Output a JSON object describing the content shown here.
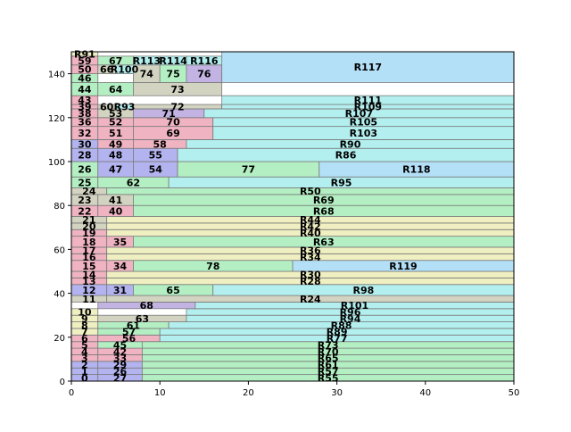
{
  "chart_data": {
    "type": "treemap",
    "xlim": [
      0,
      50
    ],
    "ylim": [
      0,
      150
    ],
    "xticks": [
      0,
      10,
      20,
      30,
      40,
      50
    ],
    "yticks": [
      0,
      20,
      40,
      60,
      80,
      100,
      120,
      140
    ],
    "grid": false,
    "palette": [
      "#b3b3ef",
      "#efb3c2",
      "#b3efc2",
      "#efefc2",
      "#b3efef",
      "#d3d3c2",
      "#c2b3e2",
      "#b3dff7"
    ],
    "rects": [
      {
        "label": "0",
        "x0": 0,
        "x1": 3,
        "y0": 0,
        "y1": 3,
        "c": 0
      },
      {
        "label": "27",
        "x0": 3,
        "x1": 8,
        "y0": 0,
        "y1": 3,
        "c": 0
      },
      {
        "label": "R55",
        "x0": 8,
        "x1": 50,
        "y0": 0,
        "y1": 3,
        "c": 2
      },
      {
        "label": "1",
        "x0": 0,
        "x1": 3,
        "y0": 3,
        "y1": 6,
        "c": 0
      },
      {
        "label": "26",
        "x0": 3,
        "x1": 8,
        "y0": 3,
        "y1": 6,
        "c": 0
      },
      {
        "label": "R57",
        "x0": 8,
        "x1": 50,
        "y0": 3,
        "y1": 6,
        "c": 2
      },
      {
        "label": "2",
        "x0": 0,
        "x1": 3,
        "y0": 6,
        "y1": 9,
        "c": 0
      },
      {
        "label": "29",
        "x0": 3,
        "x1": 8,
        "y0": 6,
        "y1": 9,
        "c": 0
      },
      {
        "label": "R61",
        "x0": 8,
        "x1": 50,
        "y0": 6,
        "y1": 9,
        "c": 2
      },
      {
        "label": "3",
        "x0": 0,
        "x1": 3,
        "y0": 9,
        "y1": 12,
        "c": 1
      },
      {
        "label": "33",
        "x0": 3,
        "x1": 8,
        "y0": 9,
        "y1": 12,
        "c": 1
      },
      {
        "label": "R65",
        "x0": 8,
        "x1": 50,
        "y0": 9,
        "y1": 12,
        "c": 2
      },
      {
        "label": "4",
        "x0": 0,
        "x1": 3,
        "y0": 12,
        "y1": 15,
        "c": 1
      },
      {
        "label": "42",
        "x0": 3,
        "x1": 8,
        "y0": 12,
        "y1": 15,
        "c": 1
      },
      {
        "label": "R70",
        "x0": 8,
        "x1": 50,
        "y0": 12,
        "y1": 15,
        "c": 2
      },
      {
        "label": "5",
        "x0": 0,
        "x1": 3,
        "y0": 15,
        "y1": 18,
        "c": 1
      },
      {
        "label": "45",
        "x0": 3,
        "x1": 8,
        "y0": 15,
        "y1": 18,
        "c": 2
      },
      {
        "label": "R73",
        "x0": 8,
        "x1": 50,
        "y0": 15,
        "y1": 18,
        "c": 2
      },
      {
        "label": "6",
        "x0": 0,
        "x1": 3,
        "y0": 18,
        "y1": 21,
        "c": 1
      },
      {
        "label": "56",
        "x0": 3,
        "x1": 10,
        "y0": 18,
        "y1": 21,
        "c": 1
      },
      {
        "label": "R77",
        "x0": 10,
        "x1": 50,
        "y0": 18,
        "y1": 21,
        "c": 4
      },
      {
        "label": "7",
        "x0": 0,
        "x1": 3,
        "y0": 21,
        "y1": 24,
        "c": 3
      },
      {
        "label": "57",
        "x0": 3,
        "x1": 10,
        "y0": 21,
        "y1": 24,
        "c": 2
      },
      {
        "label": "R89",
        "x0": 10,
        "x1": 50,
        "y0": 21,
        "y1": 24,
        "c": 4
      },
      {
        "label": "8",
        "x0": 0,
        "x1": 3,
        "y0": 24,
        "y1": 27,
        "c": 3
      },
      {
        "label": "61",
        "x0": 3,
        "x1": 11,
        "y0": 24,
        "y1": 27,
        "c": 2
      },
      {
        "label": "R88",
        "x0": 11,
        "x1": 50,
        "y0": 24,
        "y1": 27,
        "c": 4
      },
      {
        "label": "9",
        "x0": 0,
        "x1": 3,
        "y0": 27,
        "y1": 30,
        "c": 3
      },
      {
        "label": "63",
        "x0": 3,
        "x1": 13,
        "y0": 27,
        "y1": 30,
        "c": 5
      },
      {
        "label": "R94",
        "x0": 13,
        "x1": 50,
        "y0": 27,
        "y1": 30,
        "c": 4
      },
      {
        "label": "10",
        "x0": 0,
        "x1": 3,
        "y0": 30,
        "y1": 33,
        "c": 3
      },
      {
        "label": "R96",
        "x0": 13,
        "x1": 50,
        "y0": 30,
        "y1": 33,
        "c": 4
      },
      {
        "label": "68",
        "x0": 3,
        "x1": 14,
        "y0": 33,
        "y1": 36,
        "c": 6
      },
      {
        "label": "R101",
        "x0": 14,
        "x1": 50,
        "y0": 33,
        "y1": 36,
        "c": 4
      },
      {
        "label": "11",
        "x0": 0,
        "x1": 4,
        "y0": 36,
        "y1": 39,
        "c": 5
      },
      {
        "label": "R24",
        "x0": 4,
        "x1": 50,
        "y0": 36,
        "y1": 39,
        "c": 5
      },
      {
        "label": "12",
        "x0": 0,
        "x1": 4,
        "y0": 39,
        "y1": 44,
        "c": 0
      },
      {
        "label": "31",
        "x0": 4,
        "x1": 7,
        "y0": 39,
        "y1": 44,
        "c": 0
      },
      {
        "label": "65",
        "x0": 7,
        "x1": 16,
        "y0": 39,
        "y1": 44,
        "c": 2
      },
      {
        "label": "R98",
        "x0": 16,
        "x1": 50,
        "y0": 39,
        "y1": 44,
        "c": 4
      },
      {
        "label": "13",
        "x0": 0,
        "x1": 4,
        "y0": 44,
        "y1": 47,
        "c": 1
      },
      {
        "label": "R28",
        "x0": 4,
        "x1": 50,
        "y0": 44,
        "y1": 47,
        "c": 3
      },
      {
        "label": "14",
        "x0": 0,
        "x1": 4,
        "y0": 47,
        "y1": 50,
        "c": 1
      },
      {
        "label": "R30",
        "x0": 4,
        "x1": 50,
        "y0": 47,
        "y1": 50,
        "c": 3
      },
      {
        "label": "15",
        "x0": 0,
        "x1": 4,
        "y0": 50,
        "y1": 55,
        "c": 1
      },
      {
        "label": "34",
        "x0": 4,
        "x1": 7,
        "y0": 50,
        "y1": 55,
        "c": 1
      },
      {
        "label": "78",
        "x0": 7,
        "x1": 25,
        "y0": 50,
        "y1": 55,
        "c": 2
      },
      {
        "label": "R119",
        "x0": 25,
        "x1": 50,
        "y0": 50,
        "y1": 55,
        "c": 7
      },
      {
        "label": "16",
        "x0": 0,
        "x1": 4,
        "y0": 55,
        "y1": 58,
        "c": 1
      },
      {
        "label": "R34",
        "x0": 4,
        "x1": 50,
        "y0": 55,
        "y1": 58,
        "c": 3
      },
      {
        "label": "17",
        "x0": 0,
        "x1": 4,
        "y0": 58,
        "y1": 61,
        "c": 1
      },
      {
        "label": "R36",
        "x0": 4,
        "x1": 50,
        "y0": 58,
        "y1": 61,
        "c": 3
      },
      {
        "label": "18",
        "x0": 0,
        "x1": 4,
        "y0": 61,
        "y1": 66,
        "c": 1
      },
      {
        "label": "35",
        "x0": 4,
        "x1": 7,
        "y0": 61,
        "y1": 66,
        "c": 1
      },
      {
        "label": "R63",
        "x0": 7,
        "x1": 50,
        "y0": 61,
        "y1": 66,
        "c": 2
      },
      {
        "label": "19",
        "x0": 0,
        "x1": 4,
        "y0": 66,
        "y1": 69,
        "c": 1
      },
      {
        "label": "R40",
        "x0": 4,
        "x1": 50,
        "y0": 66,
        "y1": 69,
        "c": 3
      },
      {
        "label": "20",
        "x0": 0,
        "x1": 4,
        "y0": 69,
        "y1": 72,
        "c": 5
      },
      {
        "label": "R42",
        "x0": 4,
        "x1": 50,
        "y0": 69,
        "y1": 72,
        "c": 3
      },
      {
        "label": "21",
        "x0": 0,
        "x1": 4,
        "y0": 72,
        "y1": 75,
        "c": 5
      },
      {
        "label": "R44",
        "x0": 4,
        "x1": 50,
        "y0": 72,
        "y1": 75,
        "c": 3
      },
      {
        "label": "22",
        "x0": 0,
        "x1": 3,
        "y0": 75,
        "y1": 80,
        "c": 1
      },
      {
        "label": "40",
        "x0": 3,
        "x1": 7,
        "y0": 75,
        "y1": 80,
        "c": 1
      },
      {
        "label": "R68",
        "x0": 7,
        "x1": 50,
        "y0": 75,
        "y1": 80,
        "c": 2
      },
      {
        "label": "23",
        "x0": 0,
        "x1": 3,
        "y0": 80,
        "y1": 85,
        "c": 5
      },
      {
        "label": "41",
        "x0": 3,
        "x1": 7,
        "y0": 80,
        "y1": 85,
        "c": 5
      },
      {
        "label": "R69",
        "x0": 7,
        "x1": 50,
        "y0": 80,
        "y1": 85,
        "c": 2
      },
      {
        "label": "24",
        "x0": 0,
        "x1": 4,
        "y0": 85,
        "y1": 88,
        "c": 5
      },
      {
        "label": "R50",
        "x0": 4,
        "x1": 50,
        "y0": 85,
        "y1": 88,
        "c": 2
      },
      {
        "label": "25",
        "x0": 0,
        "x1": 3,
        "y0": 88,
        "y1": 93,
        "c": 2
      },
      {
        "label": "62",
        "x0": 3,
        "x1": 11,
        "y0": 88,
        "y1": 93,
        "c": 2
      },
      {
        "label": "R95",
        "x0": 11,
        "x1": 50,
        "y0": 88,
        "y1": 93,
        "c": 4
      },
      {
        "label": "26",
        "x0": 0,
        "x1": 3,
        "y0": 93,
        "y1": 100,
        "c": 2
      },
      {
        "label": "47",
        "x0": 3,
        "x1": 7,
        "y0": 93,
        "y1": 100,
        "c": 0
      },
      {
        "label": "54",
        "x0": 7,
        "x1": 12,
        "y0": 93,
        "y1": 100,
        "c": 0
      },
      {
        "label": "77",
        "x0": 12,
        "x1": 28,
        "y0": 93,
        "y1": 100,
        "c": 2
      },
      {
        "label": "R118",
        "x0": 28,
        "x1": 50,
        "y0": 93,
        "y1": 100,
        "c": 7
      },
      {
        "label": "28",
        "x0": 0,
        "x1": 3,
        "y0": 100,
        "y1": 106,
        "c": 0
      },
      {
        "label": "48",
        "x0": 3,
        "x1": 7,
        "y0": 100,
        "y1": 106,
        "c": 0
      },
      {
        "label": "55",
        "x0": 7,
        "x1": 12,
        "y0": 100,
        "y1": 106,
        "c": 0
      },
      {
        "label": "R86",
        "x0": 12,
        "x1": 50,
        "y0": 100,
        "y1": 106,
        "c": 4
      },
      {
        "label": "30",
        "x0": 0,
        "x1": 3,
        "y0": 106,
        "y1": 110,
        "c": 0
      },
      {
        "label": "49",
        "x0": 3,
        "x1": 7,
        "y0": 106,
        "y1": 110,
        "c": 1
      },
      {
        "label": "58",
        "x0": 7,
        "x1": 13,
        "y0": 106,
        "y1": 110,
        "c": 1
      },
      {
        "label": "R90",
        "x0": 13,
        "x1": 50,
        "y0": 106,
        "y1": 110,
        "c": 4
      },
      {
        "label": "32",
        "x0": 0,
        "x1": 3,
        "y0": 110,
        "y1": 116,
        "c": 1
      },
      {
        "label": "51",
        "x0": 3,
        "x1": 7,
        "y0": 110,
        "y1": 116,
        "c": 1
      },
      {
        "label": "69",
        "x0": 7,
        "x1": 16,
        "y0": 110,
        "y1": 116,
        "c": 1
      },
      {
        "label": "R103",
        "x0": 16,
        "x1": 50,
        "y0": 110,
        "y1": 116,
        "c": 4
      },
      {
        "label": "36",
        "x0": 0,
        "x1": 3,
        "y0": 116,
        "y1": 120,
        "c": 1
      },
      {
        "label": "52",
        "x0": 3,
        "x1": 7,
        "y0": 116,
        "y1": 120,
        "c": 1
      },
      {
        "label": "70",
        "x0": 7,
        "x1": 16,
        "y0": 116,
        "y1": 120,
        "c": 1
      },
      {
        "label": "R105",
        "x0": 16,
        "x1": 50,
        "y0": 116,
        "y1": 120,
        "c": 4
      },
      {
        "label": "38",
        "x0": 0,
        "x1": 3,
        "y0": 120,
        "y1": 124,
        "c": 1
      },
      {
        "label": "53",
        "x0": 3,
        "x1": 7,
        "y0": 120,
        "y1": 124,
        "c": 5
      },
      {
        "label": "71",
        "x0": 7,
        "x1": 15,
        "y0": 120,
        "y1": 124,
        "c": 6
      },
      {
        "label": "R107",
        "x0": 15,
        "x1": 50,
        "y0": 120,
        "y1": 124,
        "c": 4
      },
      {
        "label": "39",
        "x0": 0,
        "x1": 3,
        "y0": 124,
        "y1": 126,
        "c": 1
      },
      {
        "label": "60",
        "x0": 3,
        "x1": 5,
        "y0": 124,
        "y1": 126,
        "c": 5
      },
      {
        "label": "R93",
        "x0": 5,
        "x1": 7,
        "y0": 124,
        "y1": 126,
        "c": 4
      },
      {
        "label": "72",
        "x0": 7,
        "x1": 17,
        "y0": 124,
        "y1": 126,
        "c": 5
      },
      {
        "label": "R109",
        "x0": 17,
        "x1": 50,
        "y0": 124,
        "y1": 126,
        "c": 4
      },
      {
        "label": "43",
        "x0": 0,
        "x1": 3,
        "y0": 126,
        "y1": 130,
        "c": 1
      },
      {
        "label": "R111",
        "x0": 17,
        "x1": 50,
        "y0": 126,
        "y1": 130,
        "c": 4
      },
      {
        "label": "44",
        "x0": 0,
        "x1": 3,
        "y0": 130,
        "y1": 136,
        "c": 2
      },
      {
        "label": "64",
        "x0": 3,
        "x1": 7,
        "y0": 130,
        "y1": 136,
        "c": 2
      },
      {
        "label": "73",
        "x0": 7,
        "x1": 17,
        "y0": 130,
        "y1": 136,
        "c": 5
      },
      {
        "label": "46",
        "x0": 0,
        "x1": 3,
        "y0": 136,
        "y1": 140,
        "c": 2
      },
      {
        "label": "50",
        "x0": 0,
        "x1": 3,
        "y0": 140,
        "y1": 144,
        "c": 1
      },
      {
        "label": "66",
        "x0": 3,
        "x1": 5,
        "y0": 140,
        "y1": 144,
        "c": 5
      },
      {
        "label": "R100",
        "x0": 5,
        "x1": 7,
        "y0": 140,
        "y1": 144,
        "c": 4
      },
      {
        "label": "74",
        "x0": 7,
        "x1": 10,
        "y0": 136,
        "y1": 144,
        "c": 5
      },
      {
        "label": "75",
        "x0": 10,
        "x1": 13,
        "y0": 136,
        "y1": 144,
        "c": 2
      },
      {
        "label": "76",
        "x0": 13,
        "x1": 17,
        "y0": 136,
        "y1": 144,
        "c": 6
      },
      {
        "label": "R117",
        "x0": 17,
        "x1": 50,
        "y0": 136,
        "y1": 150,
        "c": 7
      },
      {
        "label": "59",
        "x0": 0,
        "x1": 3,
        "y0": 144,
        "y1": 148,
        "c": 1
      },
      {
        "label": "67",
        "x0": 3,
        "x1": 7,
        "y0": 144,
        "y1": 148,
        "c": 2
      },
      {
        "label": "R113",
        "x0": 7,
        "x1": 10,
        "y0": 144,
        "y1": 148,
        "c": 4
      },
      {
        "label": "R114",
        "x0": 10,
        "x1": 13,
        "y0": 144,
        "y1": 148,
        "c": 4
      },
      {
        "label": "R116",
        "x0": 13,
        "x1": 17,
        "y0": 144,
        "y1": 148,
        "c": 4
      },
      {
        "label": "R91",
        "x0": 0,
        "x1": 3,
        "y0": 148,
        "y1": 150,
        "c": 3
      }
    ]
  }
}
